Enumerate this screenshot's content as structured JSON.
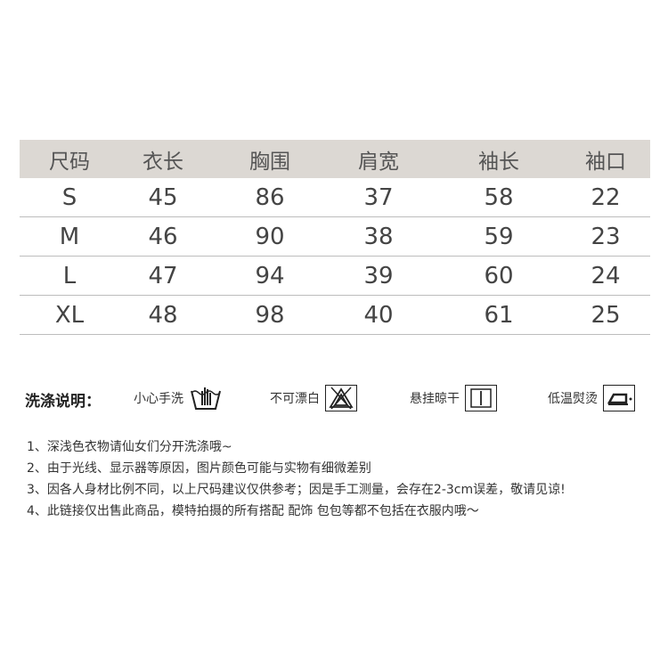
{
  "size_table": {
    "headers": [
      "尺码",
      "衣长",
      "胸围",
      "肩宽",
      "袖长",
      "袖口"
    ],
    "rows": [
      [
        "S",
        "45",
        "86",
        "37",
        "58",
        "22"
      ],
      [
        "M",
        "46",
        "90",
        "38",
        "59",
        "23"
      ],
      [
        "L",
        "47",
        "94",
        "39",
        "60",
        "24"
      ],
      [
        "XL",
        "48",
        "98",
        "40",
        "61",
        "25"
      ]
    ],
    "header_bg": "#dcd8d3"
  },
  "care": {
    "title": "洗涤说明：",
    "items": [
      {
        "label": "小心手洗",
        "icon": "hand-wash-icon"
      },
      {
        "label": "不可漂白",
        "icon": "no-bleach-icon"
      },
      {
        "label": "悬挂晾干",
        "icon": "hang-dry-icon"
      },
      {
        "label": "低温熨烫",
        "icon": "low-iron-icon"
      }
    ]
  },
  "notes": [
    "1、深浅色衣物请仙女们分开洗涤哦~",
    "2、由于光线、显示器等原因，图片颜色可能与实物有细微差别",
    "3、因各人身材比例不同，以上尺码建议仅供参考；因是手工测量，会存在2-3cm误差，敬请见谅!",
    "4、此链接仅出售此商品，模特拍摄的所有搭配 配饰 包包等都不包括在衣服内哦～"
  ]
}
